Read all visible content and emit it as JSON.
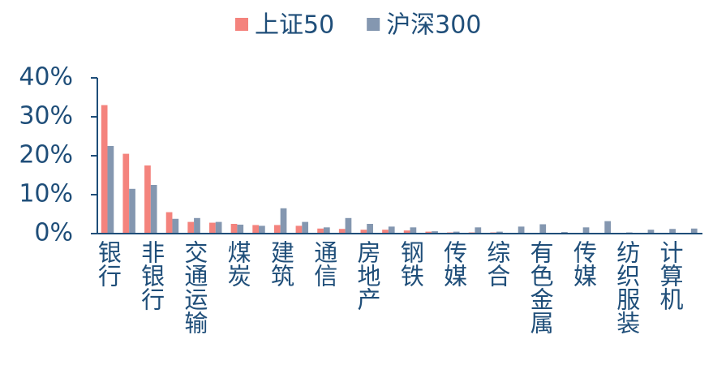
{
  "chart_data": {
    "type": "bar",
    "categories": [
      "银行",
      null,
      "非银行",
      null,
      "交通运输",
      null,
      "煤炭",
      null,
      "建筑",
      null,
      "通信",
      null,
      "房地产",
      null,
      "钢铁",
      null,
      "传媒",
      null,
      "综合",
      null,
      "有色金属",
      null,
      "传媒",
      null,
      "纺织服装",
      null,
      "计算机",
      null
    ],
    "series": [
      {
        "name": "上证50",
        "color": "#f4837d",
        "values": [
          33,
          20.5,
          17.5,
          5.5,
          3,
          2.8,
          2.5,
          2.2,
          2.2,
          2,
          1.3,
          1.2,
          1,
          1,
          0.8,
          0.5,
          0.3,
          0.3,
          0.3,
          0.2,
          0.2,
          0.2,
          0.2,
          0.2,
          0.1,
          0.1,
          0.1,
          0.1
        ]
      },
      {
        "name": "沪深300",
        "color": "#8497b0",
        "values": [
          22.5,
          11.5,
          12.5,
          3.8,
          4,
          3,
          2.3,
          2,
          6.5,
          3,
          1.6,
          4,
          2.5,
          1.8,
          1.6,
          0.6,
          0.5,
          1.6,
          0.5,
          1.8,
          2.4,
          0.4,
          1.6,
          3.2,
          0.3,
          1,
          1.2,
          1.3
        ]
      }
    ],
    "ylim": [
      0,
      40
    ],
    "yticks": [
      {
        "value": 0,
        "label": "0%"
      },
      {
        "value": 10,
        "label": "10%"
      },
      {
        "value": 20,
        "label": "20%"
      },
      {
        "value": 30,
        "label": "30%"
      },
      {
        "value": 40,
        "label": "40%"
      }
    ],
    "legend": "top"
  }
}
